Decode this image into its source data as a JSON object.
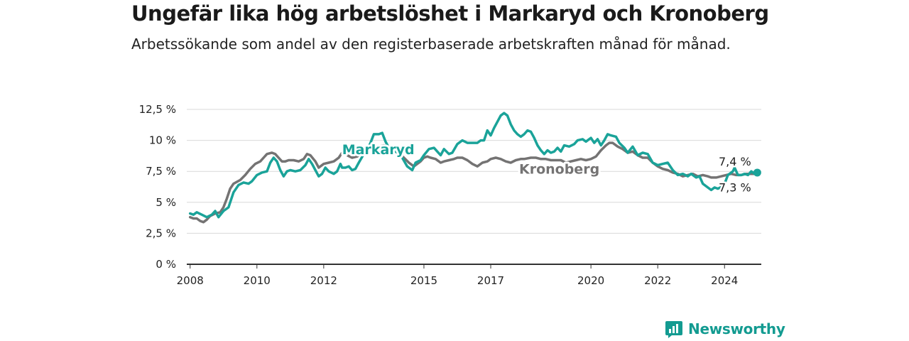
{
  "title": "Ungefär lika hög arbetslöshet i Markaryd och Kronoberg",
  "subtitle": "Arbetssökande som andel av den registerbaserade arbetskraften månad för månad.",
  "brand": {
    "name": "Newsworthy",
    "color": "#139b91"
  },
  "chart_data": {
    "type": "line",
    "title": "Ungefär lika hög arbetslöshet i Markaryd och Kronoberg",
    "subtitle": "Arbetssökande som andel av den registerbaserade arbetskraften månad för månad.",
    "xlim": [
      2007.9,
      2025.1
    ],
    "ylim": [
      0,
      12.5
    ],
    "y_ticks": [
      0,
      2.5,
      5,
      7.5,
      10,
      12.5
    ],
    "y_tick_labels": [
      "0 %",
      "2,5 %",
      "5 %",
      "7,5 %",
      "10 %",
      "12,5 %"
    ],
    "x_ticks": [
      2008,
      2010,
      2012,
      2015,
      2017,
      2020,
      2022,
      2024
    ],
    "x_tick_labels": [
      "2008",
      "2010",
      "2012",
      "2015",
      "2017",
      "2020",
      "2022",
      "2024"
    ],
    "grid": true,
    "legend": "direct labels",
    "series": [
      {
        "name": "Markaryd",
        "color": "#1aa399",
        "end_label": "7,4 %",
        "end_value": 7.4,
        "points": [
          [
            2008.0,
            4.1
          ],
          [
            2008.1,
            4.0
          ],
          [
            2008.2,
            4.2
          ],
          [
            2008.35,
            4.0
          ],
          [
            2008.5,
            3.8
          ],
          [
            2008.65,
            4.0
          ],
          [
            2008.75,
            4.3
          ],
          [
            2008.85,
            3.8
          ],
          [
            2009.0,
            4.3
          ],
          [
            2009.15,
            4.6
          ],
          [
            2009.3,
            5.8
          ],
          [
            2009.45,
            6.4
          ],
          [
            2009.6,
            6.6
          ],
          [
            2009.75,
            6.5
          ],
          [
            2009.85,
            6.7
          ],
          [
            2010.0,
            7.2
          ],
          [
            2010.15,
            7.4
          ],
          [
            2010.3,
            7.5
          ],
          [
            2010.4,
            8.2
          ],
          [
            2010.5,
            8.6
          ],
          [
            2010.6,
            8.3
          ],
          [
            2010.7,
            7.6
          ],
          [
            2010.8,
            7.1
          ],
          [
            2010.9,
            7.5
          ],
          [
            2011.0,
            7.6
          ],
          [
            2011.15,
            7.5
          ],
          [
            2011.3,
            7.6
          ],
          [
            2011.45,
            8.0
          ],
          [
            2011.55,
            8.5
          ],
          [
            2011.65,
            8.1
          ],
          [
            2011.75,
            7.6
          ],
          [
            2011.85,
            7.1
          ],
          [
            2011.95,
            7.3
          ],
          [
            2012.05,
            7.8
          ],
          [
            2012.15,
            7.5
          ],
          [
            2012.3,
            7.3
          ],
          [
            2012.4,
            7.5
          ],
          [
            2012.5,
            8.1
          ],
          [
            2012.55,
            7.8
          ],
          [
            2012.65,
            7.8
          ],
          [
            2012.75,
            7.9
          ],
          [
            2012.85,
            7.6
          ],
          [
            2012.95,
            7.7
          ],
          [
            2013.05,
            8.2
          ],
          [
            2013.2,
            8.9
          ],
          [
            2013.3,
            9.2
          ],
          [
            2013.4,
            9.8
          ],
          [
            2013.5,
            10.5
          ],
          [
            2013.65,
            10.5
          ],
          [
            2013.75,
            10.6
          ],
          [
            2013.85,
            9.9
          ],
          [
            2013.95,
            9.4
          ],
          [
            2014.05,
            9.3
          ],
          [
            2014.2,
            9.0
          ],
          [
            2014.35,
            8.6
          ],
          [
            2014.5,
            7.9
          ],
          [
            2014.55,
            7.8
          ],
          [
            2014.65,
            7.6
          ],
          [
            2014.75,
            8.2
          ],
          [
            2014.9,
            8.4
          ],
          [
            2015.0,
            8.8
          ],
          [
            2015.15,
            9.3
          ],
          [
            2015.3,
            9.4
          ],
          [
            2015.4,
            9.1
          ],
          [
            2015.5,
            8.8
          ],
          [
            2015.6,
            9.3
          ],
          [
            2015.75,
            8.9
          ],
          [
            2015.85,
            9.0
          ],
          [
            2016.0,
            9.7
          ],
          [
            2016.15,
            10.0
          ],
          [
            2016.3,
            9.8
          ],
          [
            2016.45,
            9.8
          ],
          [
            2016.6,
            9.8
          ],
          [
            2016.7,
            10.0
          ],
          [
            2016.8,
            10.0
          ],
          [
            2016.9,
            10.8
          ],
          [
            2017.0,
            10.4
          ],
          [
            2017.1,
            11.0
          ],
          [
            2017.2,
            11.5
          ],
          [
            2017.3,
            12.0
          ],
          [
            2017.4,
            12.2
          ],
          [
            2017.5,
            12.0
          ],
          [
            2017.6,
            11.3
          ],
          [
            2017.7,
            10.8
          ],
          [
            2017.8,
            10.5
          ],
          [
            2017.9,
            10.3
          ],
          [
            2018.0,
            10.5
          ],
          [
            2018.1,
            10.8
          ],
          [
            2018.2,
            10.7
          ],
          [
            2018.3,
            10.2
          ],
          [
            2018.4,
            9.6
          ],
          [
            2018.5,
            9.2
          ],
          [
            2018.6,
            8.9
          ],
          [
            2018.7,
            9.2
          ],
          [
            2018.8,
            9.0
          ],
          [
            2018.9,
            9.1
          ],
          [
            2019.0,
            9.4
          ],
          [
            2019.1,
            9.1
          ],
          [
            2019.2,
            9.6
          ],
          [
            2019.35,
            9.5
          ],
          [
            2019.5,
            9.7
          ],
          [
            2019.6,
            10.0
          ],
          [
            2019.75,
            10.1
          ],
          [
            2019.85,
            9.9
          ],
          [
            2020.0,
            10.2
          ],
          [
            2020.1,
            9.8
          ],
          [
            2020.2,
            10.1
          ],
          [
            2020.3,
            9.6
          ],
          [
            2020.4,
            10.0
          ],
          [
            2020.5,
            10.5
          ],
          [
            2020.6,
            10.4
          ],
          [
            2020.75,
            10.3
          ],
          [
            2020.85,
            9.8
          ],
          [
            2021.0,
            9.4
          ],
          [
            2021.1,
            9.0
          ],
          [
            2021.25,
            9.5
          ],
          [
            2021.4,
            8.8
          ],
          [
            2021.55,
            9.0
          ],
          [
            2021.7,
            8.9
          ],
          [
            2021.85,
            8.2
          ],
          [
            2022.0,
            8.0
          ],
          [
            2022.15,
            8.1
          ],
          [
            2022.3,
            8.2
          ],
          [
            2022.45,
            7.6
          ],
          [
            2022.6,
            7.2
          ],
          [
            2022.75,
            7.3
          ],
          [
            2022.9,
            7.1
          ],
          [
            2023.0,
            7.3
          ],
          [
            2023.15,
            7.0
          ],
          [
            2023.25,
            7.1
          ],
          [
            2023.35,
            6.5
          ],
          [
            2023.5,
            6.2
          ],
          [
            2023.6,
            6.0
          ],
          [
            2023.7,
            6.2
          ],
          [
            2023.8,
            6.1
          ],
          [
            2023.95,
            6.3
          ],
          [
            2024.0,
            6.5
          ],
          [
            2024.1,
            7.2
          ],
          [
            2024.2,
            7.4
          ],
          [
            2024.25,
            7.5
          ],
          [
            2024.3,
            7.8
          ],
          [
            2024.4,
            7.2
          ],
          [
            2024.5,
            7.2
          ],
          [
            2024.6,
            7.3
          ],
          [
            2024.7,
            7.2
          ],
          [
            2024.8,
            7.5
          ],
          [
            2024.9,
            7.3
          ],
          [
            2024.98,
            7.4
          ]
        ]
      },
      {
        "name": "Kronoberg",
        "color": "#747373",
        "end_label": "7,3 %",
        "end_value": 7.3,
        "points": [
          [
            2008.0,
            3.8
          ],
          [
            2008.1,
            3.7
          ],
          [
            2008.2,
            3.7
          ],
          [
            2008.3,
            3.5
          ],
          [
            2008.4,
            3.4
          ],
          [
            2008.5,
            3.6
          ],
          [
            2008.6,
            3.9
          ],
          [
            2008.75,
            4.1
          ],
          [
            2008.9,
            4.2
          ],
          [
            2009.0,
            4.6
          ],
          [
            2009.1,
            5.3
          ],
          [
            2009.2,
            6.1
          ],
          [
            2009.3,
            6.5
          ],
          [
            2009.5,
            6.8
          ],
          [
            2009.65,
            7.2
          ],
          [
            2009.8,
            7.7
          ],
          [
            2009.95,
            8.1
          ],
          [
            2010.1,
            8.3
          ],
          [
            2010.2,
            8.6
          ],
          [
            2010.3,
            8.9
          ],
          [
            2010.45,
            9.0
          ],
          [
            2010.55,
            8.9
          ],
          [
            2010.65,
            8.6
          ],
          [
            2010.75,
            8.3
          ],
          [
            2010.85,
            8.3
          ],
          [
            2010.95,
            8.4
          ],
          [
            2011.1,
            8.4
          ],
          [
            2011.25,
            8.3
          ],
          [
            2011.4,
            8.5
          ],
          [
            2011.5,
            8.9
          ],
          [
            2011.6,
            8.8
          ],
          [
            2011.75,
            8.3
          ],
          [
            2011.85,
            7.8
          ],
          [
            2012.0,
            8.1
          ],
          [
            2012.15,
            8.2
          ],
          [
            2012.3,
            8.3
          ],
          [
            2012.45,
            8.6
          ],
          [
            2012.55,
            9.0
          ],
          [
            2012.7,
            8.8
          ],
          [
            2012.85,
            8.6
          ],
          [
            2013.0,
            8.7
          ],
          [
            2013.2,
            9.1
          ],
          [
            2013.35,
            9.3
          ],
          [
            2013.5,
            9.5
          ],
          [
            2013.65,
            9.5
          ],
          [
            2013.8,
            9.6
          ],
          [
            2013.95,
            9.5
          ],
          [
            2014.1,
            9.3
          ],
          [
            2014.25,
            9.0
          ],
          [
            2014.4,
            8.6
          ],
          [
            2014.55,
            8.2
          ],
          [
            2014.7,
            7.9
          ],
          [
            2014.8,
            8.1
          ],
          [
            2014.9,
            8.3
          ],
          [
            2015.0,
            8.6
          ],
          [
            2015.1,
            8.7
          ],
          [
            2015.2,
            8.6
          ],
          [
            2015.35,
            8.5
          ],
          [
            2015.5,
            8.2
          ],
          [
            2015.6,
            8.3
          ],
          [
            2015.75,
            8.4
          ],
          [
            2015.9,
            8.5
          ],
          [
            2016.0,
            8.6
          ],
          [
            2016.15,
            8.6
          ],
          [
            2016.3,
            8.4
          ],
          [
            2016.45,
            8.1
          ],
          [
            2016.6,
            7.9
          ],
          [
            2016.75,
            8.2
          ],
          [
            2016.9,
            8.3
          ],
          [
            2017.0,
            8.5
          ],
          [
            2017.15,
            8.6
          ],
          [
            2017.3,
            8.5
          ],
          [
            2017.45,
            8.3
          ],
          [
            2017.6,
            8.2
          ],
          [
            2017.75,
            8.4
          ],
          [
            2017.9,
            8.5
          ],
          [
            2018.0,
            8.5
          ],
          [
            2018.2,
            8.6
          ],
          [
            2018.35,
            8.6
          ],
          [
            2018.5,
            8.5
          ],
          [
            2018.65,
            8.5
          ],
          [
            2018.8,
            8.4
          ],
          [
            2018.95,
            8.4
          ],
          [
            2019.1,
            8.4
          ],
          [
            2019.25,
            8.2
          ],
          [
            2019.4,
            8.3
          ],
          [
            2019.55,
            8.4
          ],
          [
            2019.7,
            8.5
          ],
          [
            2019.85,
            8.4
          ],
          [
            2020.0,
            8.5
          ],
          [
            2020.15,
            8.7
          ],
          [
            2020.3,
            9.2
          ],
          [
            2020.45,
            9.6
          ],
          [
            2020.55,
            9.8
          ],
          [
            2020.65,
            9.8
          ],
          [
            2020.8,
            9.5
          ],
          [
            2020.95,
            9.3
          ],
          [
            2021.1,
            9.0
          ],
          [
            2021.25,
            9.1
          ],
          [
            2021.4,
            8.8
          ],
          [
            2021.55,
            8.6
          ],
          [
            2021.7,
            8.6
          ],
          [
            2021.85,
            8.2
          ],
          [
            2022.0,
            7.9
          ],
          [
            2022.15,
            7.7
          ],
          [
            2022.3,
            7.6
          ],
          [
            2022.45,
            7.4
          ],
          [
            2022.6,
            7.3
          ],
          [
            2022.75,
            7.1
          ],
          [
            2022.9,
            7.2
          ],
          [
            2023.05,
            7.3
          ],
          [
            2023.2,
            7.1
          ],
          [
            2023.35,
            7.2
          ],
          [
            2023.5,
            7.1
          ],
          [
            2023.6,
            7.0
          ],
          [
            2023.75,
            7.0
          ],
          [
            2023.9,
            7.1
          ],
          [
            2024.05,
            7.2
          ],
          [
            2024.2,
            7.3
          ],
          [
            2024.35,
            7.2
          ],
          [
            2024.5,
            7.2
          ],
          [
            2024.65,
            7.3
          ],
          [
            2024.8,
            7.3
          ],
          [
            2024.98,
            7.3
          ]
        ]
      }
    ]
  }
}
